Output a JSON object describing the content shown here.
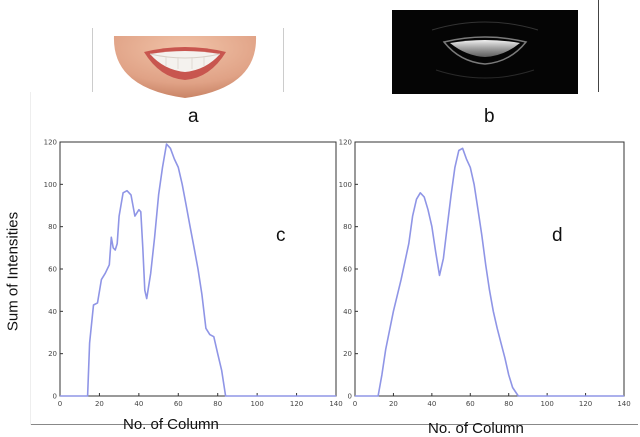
{
  "panels": {
    "a_label": "a",
    "b_label": "b"
  },
  "y_axis_title": "Sum of Intensities",
  "colors": {
    "series_line": "#8f95e6",
    "axis": "#333333",
    "photo_b_bg": "#050505"
  },
  "chart_data": [
    {
      "type": "line",
      "panel_letter": "c",
      "xlabel": "No. of Column",
      "xlim": [
        0,
        140
      ],
      "ylim": [
        0,
        120
      ],
      "x_ticks": [
        0,
        20,
        40,
        60,
        80,
        100,
        120,
        140
      ],
      "y_ticks": [
        0,
        20,
        40,
        60,
        80,
        100,
        120
      ],
      "grid": false,
      "series": [
        {
          "points": [
            [
              0,
              0
            ],
            [
              14,
              0
            ],
            [
              15,
              25
            ],
            [
              17,
              43
            ],
            [
              19,
              44
            ],
            [
              21,
              55
            ],
            [
              23,
              58
            ],
            [
              25,
              62
            ],
            [
              26,
              75
            ],
            [
              27,
              70
            ],
            [
              28,
              69
            ],
            [
              29,
              72
            ],
            [
              30,
              85
            ],
            [
              32,
              96
            ],
            [
              34,
              97
            ],
            [
              36,
              95
            ],
            [
              38,
              85
            ],
            [
              40,
              88
            ],
            [
              41,
              87
            ],
            [
              42,
              70
            ],
            [
              43,
              50
            ],
            [
              44,
              46
            ],
            [
              46,
              58
            ],
            [
              48,
              75
            ],
            [
              50,
              95
            ],
            [
              52,
              108
            ],
            [
              54,
              119
            ],
            [
              56,
              117
            ],
            [
              58,
              112
            ],
            [
              60,
              108
            ],
            [
              62,
              100
            ],
            [
              64,
              90
            ],
            [
              66,
              80
            ],
            [
              68,
              70
            ],
            [
              70,
              60
            ],
            [
              72,
              48
            ],
            [
              74,
              32
            ],
            [
              76,
              29
            ],
            [
              78,
              28
            ],
            [
              80,
              20
            ],
            [
              82,
              12
            ],
            [
              84,
              0
            ],
            [
              140,
              0
            ]
          ]
        }
      ]
    },
    {
      "type": "line",
      "panel_letter": "d",
      "xlabel": "No. of Column",
      "xlim": [
        0,
        140
      ],
      "ylim": [
        0,
        120
      ],
      "x_ticks": [
        0,
        20,
        40,
        60,
        80,
        100,
        120,
        140
      ],
      "y_ticks": [
        0,
        20,
        40,
        60,
        80,
        100,
        120
      ],
      "grid": false,
      "series": [
        {
          "points": [
            [
              0,
              0
            ],
            [
              12,
              0
            ],
            [
              14,
              10
            ],
            [
              16,
              22
            ],
            [
              20,
              40
            ],
            [
              24,
              55
            ],
            [
              28,
              72
            ],
            [
              30,
              85
            ],
            [
              32,
              93
            ],
            [
              34,
              96
            ],
            [
              36,
              94
            ],
            [
              38,
              88
            ],
            [
              40,
              80
            ],
            [
              42,
              68
            ],
            [
              44,
              57
            ],
            [
              46,
              65
            ],
            [
              48,
              80
            ],
            [
              50,
              95
            ],
            [
              52,
              108
            ],
            [
              54,
              116
            ],
            [
              56,
              117
            ],
            [
              58,
              112
            ],
            [
              60,
              108
            ],
            [
              62,
              100
            ],
            [
              64,
              88
            ],
            [
              66,
              76
            ],
            [
              68,
              62
            ],
            [
              70,
              50
            ],
            [
              72,
              40
            ],
            [
              74,
              32
            ],
            [
              76,
              25
            ],
            [
              78,
              18
            ],
            [
              80,
              10
            ],
            [
              82,
              4
            ],
            [
              85,
              0
            ],
            [
              140,
              0
            ]
          ]
        }
      ]
    }
  ]
}
